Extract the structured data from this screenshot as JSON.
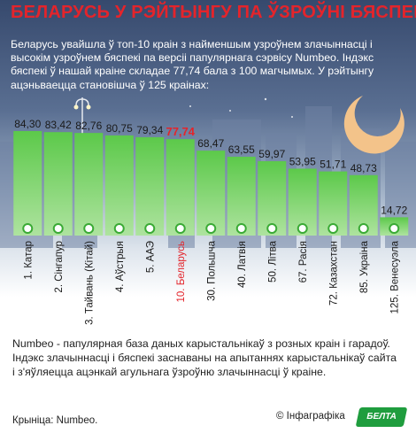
{
  "title": "БЕЛАРУСЬ У РЭЙТЫНГУ ПА ЎЗРОЎНІ БЯСПЕКІ",
  "intro": "Беларусь увайшла ў топ-10 краін з найменшым узроўнем злачыннасці і высокім узроўнем бяспекі па версіі папулярнага сэрвісу Numbeo. Індэкс бяспекі ў нашай краіне складае 77,74 бала з 100 магчымых. У рэйтынгу ацэньваецца становішча ў 125 краінах:",
  "chart_data": {
    "type": "bar",
    "categories": [
      "1. Катар",
      "2. Сінгапур",
      "3. Тайвань (Кітай)",
      "4. Аўстрыя",
      "5. ААЭ",
      "10. Беларусь",
      "30. Польшча",
      "40. Латвія",
      "50. Літва",
      "67. Расія",
      "72. Казахстан",
      "85. Украіна",
      "125. Венесуэла"
    ],
    "values": [
      84.3,
      83.42,
      82.76,
      80.75,
      79.34,
      77.74,
      68.47,
      63.55,
      59.97,
      53.95,
      51.71,
      48.73,
      14.72
    ],
    "value_labels": [
      "84,30",
      "83,42",
      "82,76",
      "80,75",
      "79,34",
      "77,74",
      "68,47",
      "63,55",
      "59,97",
      "53,95",
      "51,71",
      "48,73",
      "14,72"
    ],
    "highlight": "10. Беларусь",
    "ylim": [
      0,
      100
    ],
    "grid": false
  },
  "colors": {
    "bar_top": "#5cc94a",
    "bar_bottom": "#aee39f",
    "highlight": "#e4242b",
    "dot_fill": "#ffffff",
    "dot_stroke": "#3aaa35"
  },
  "note": "Numbeo - папулярная база даных карыстальнікаў з розных краін і гарадоў. Індэкс злачыннасці і бяспекі заснаваны на апытаннях карыстальнікаў сайта і з'яўляецца ацэнкай агульнага ўзроўню злачыннасці ў краіне.",
  "source": "Крыніца: Numbeo.",
  "copyright": "© Інфаграфіка",
  "logo_text": "БЕЛТА"
}
